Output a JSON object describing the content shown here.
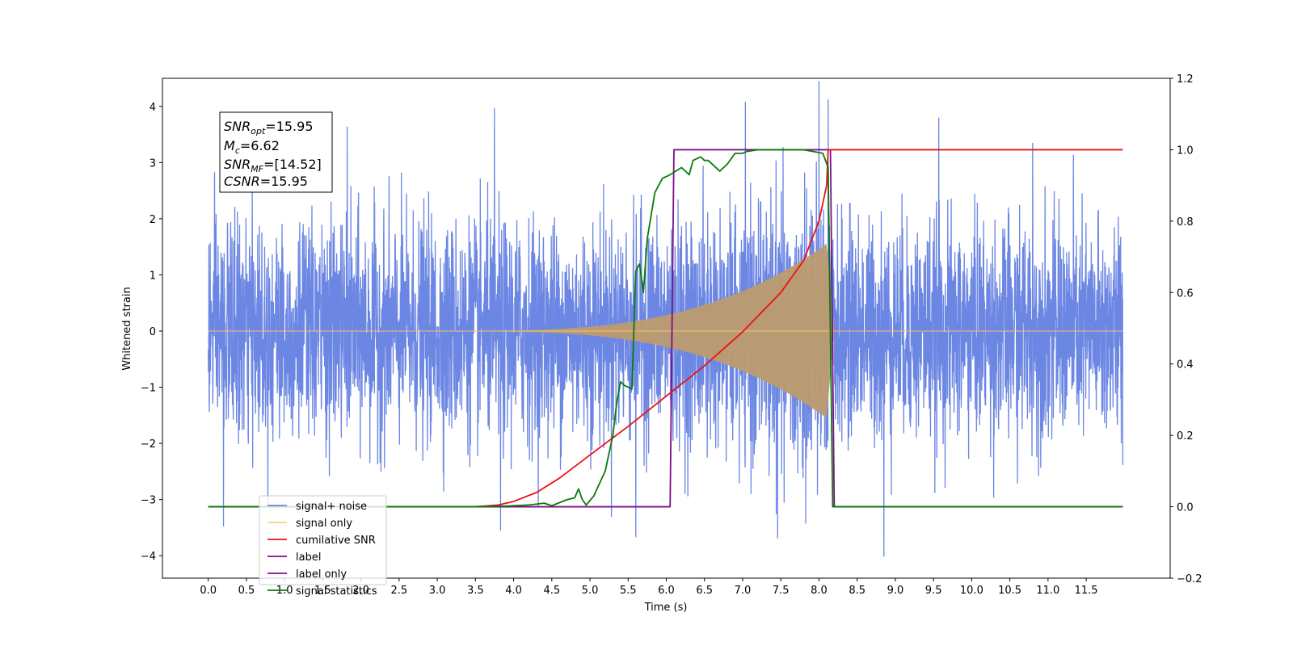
{
  "chart_data": {
    "type": "line",
    "title": "",
    "xlabel": "Time (s)",
    "ylabel": "Whitened strain",
    "xlim": [
      -0.6,
      12.6
    ],
    "ylim": [
      -4.4,
      4.5
    ],
    "y2lim": [
      -0.2,
      1.2
    ],
    "x_ticks": [
      0.0,
      0.5,
      1.0,
      1.5,
      2.0,
      2.5,
      3.0,
      3.5,
      4.0,
      4.5,
      5.0,
      5.5,
      6.0,
      6.5,
      7.0,
      7.5,
      8.0,
      8.5,
      9.0,
      9.5,
      10.0,
      10.5,
      11.0,
      11.5
    ],
    "x_tick_labels": [
      "0.0",
      "0.5",
      "1.0",
      "1.5",
      "2.0",
      "2.5",
      "3.0",
      "3.5",
      "4.0",
      "4.5",
      "5.0",
      "5.5",
      "6.0",
      "6.5",
      "7.0",
      "7.5",
      "8.0",
      "8.5",
      "9.0",
      "9.5",
      "10.0",
      "10.5",
      "11.0",
      "11.5"
    ],
    "y_ticks": [
      -4,
      -3,
      -2,
      -1,
      0,
      1,
      2,
      3,
      4
    ],
    "y_tick_labels": [
      "−4",
      "−3",
      "−2",
      "−1",
      "0",
      "1",
      "2",
      "3",
      "4"
    ],
    "y2_ticks": [
      -0.2,
      0.0,
      0.2,
      0.4,
      0.6,
      0.8,
      1.0,
      1.2
    ],
    "y2_tick_labels": [
      "−0.2",
      "0.0",
      "0.2",
      "0.4",
      "0.6",
      "0.8",
      "1.0",
      "1.2"
    ],
    "grid": false,
    "legend_position": "lower-left",
    "legend": [
      {
        "label": "signal+ noise",
        "color": "#6b86e3"
      },
      {
        "label": "signal only",
        "color": "#f6c46a"
      },
      {
        "label": "cumilative SNR",
        "color": "#ee1111"
      },
      {
        "label": "label",
        "color": "#7b0f86"
      },
      {
        "label": "label only",
        "color": "#7b0f86"
      },
      {
        "label": "signal statistics",
        "color": "#0a7a0a"
      }
    ],
    "annotation": {
      "snr_opt_base": "SNR",
      "snr_opt_sub": "opt",
      "snr_opt_value": "=15.95",
      "mc_base": "M",
      "mc_sub": "c",
      "mc_value": "=6.62",
      "snr_mf_base": "SNR",
      "snr_mf_sub": "MF",
      "snr_mf_value": "=[14.52]",
      "csnr_base": "CSNR",
      "csnr_value": "=15.95"
    },
    "series": [
      {
        "name": "signal+ noise",
        "axis": "left",
        "style": "noise",
        "t_start": 0.0,
        "t_end": 11.98,
        "sigma": 1.0,
        "envelope": {
          "t_start": 3.0,
          "t_peak": 8.1,
          "t_end": 8.2,
          "peak_amplitude": 1.55
        },
        "notable_spikes": [
          {
            "x": 3.75,
            "y": 3.97
          },
          {
            "x": 8.12,
            "y": 4.12
          },
          {
            "x": 1.82,
            "y": 3.64
          },
          {
            "x": 8.85,
            "y": -4.02
          },
          {
            "x": 5.6,
            "y": -3.67
          },
          {
            "x": 10.8,
            "y": 3.35
          },
          {
            "x": 0.2,
            "y": -3.48
          },
          {
            "x": 3.83,
            "y": -3.55
          },
          {
            "x": 9.57,
            "y": 3.8
          }
        ]
      },
      {
        "name": "signal only",
        "axis": "left",
        "style": "chirp",
        "t_start": 3.0,
        "t_peak": 8.1,
        "t_end": 8.2,
        "peak_amplitude": 1.55
      },
      {
        "name": "cumilative SNR",
        "axis": "right",
        "x": [
          0.0,
          3.5,
          3.8,
          4.0,
          4.3,
          4.6,
          5.0,
          5.5,
          6.0,
          6.5,
          7.0,
          7.5,
          7.8,
          8.0,
          8.1,
          8.12,
          8.15,
          11.98
        ],
        "y": [
          0.0,
          0.0,
          0.005,
          0.015,
          0.04,
          0.08,
          0.145,
          0.225,
          0.31,
          0.395,
          0.49,
          0.6,
          0.69,
          0.8,
          0.9,
          1.0,
          1.0,
          1.0
        ]
      },
      {
        "name": "label",
        "axis": "right",
        "x": [
          0.0,
          6.05,
          6.1,
          8.15,
          8.2,
          11.98
        ],
        "y": [
          0.0,
          0.0,
          1.0,
          1.0,
          0.0,
          0.0
        ]
      },
      {
        "name": "signal statistics",
        "axis": "right",
        "x": [
          0.0,
          3.4,
          3.9,
          4.2,
          4.4,
          4.5,
          4.7,
          4.8,
          4.85,
          4.9,
          4.95,
          5.05,
          5.2,
          5.3,
          5.35,
          5.4,
          5.45,
          5.55,
          5.6,
          5.65,
          5.7,
          5.75,
          5.85,
          5.95,
          6.05,
          6.2,
          6.3,
          6.35,
          6.45,
          6.5,
          6.55,
          6.65,
          6.7,
          6.8,
          6.9,
          7.0,
          7.05,
          7.2,
          7.4,
          7.6,
          7.8,
          8.05,
          8.12,
          8.18,
          8.25,
          11.98
        ],
        "y": [
          0.0,
          0.0,
          0.002,
          0.005,
          0.01,
          0.003,
          0.02,
          0.025,
          0.05,
          0.02,
          0.005,
          0.03,
          0.1,
          0.2,
          0.29,
          0.35,
          0.34,
          0.33,
          0.66,
          0.68,
          0.6,
          0.75,
          0.88,
          0.92,
          0.93,
          0.95,
          0.93,
          0.97,
          0.98,
          0.97,
          0.97,
          0.95,
          0.94,
          0.96,
          0.99,
          0.99,
          0.995,
          1.0,
          1.0,
          1.0,
          1.0,
          0.99,
          0.95,
          0.0,
          0.0,
          0.0
        ]
      }
    ]
  }
}
